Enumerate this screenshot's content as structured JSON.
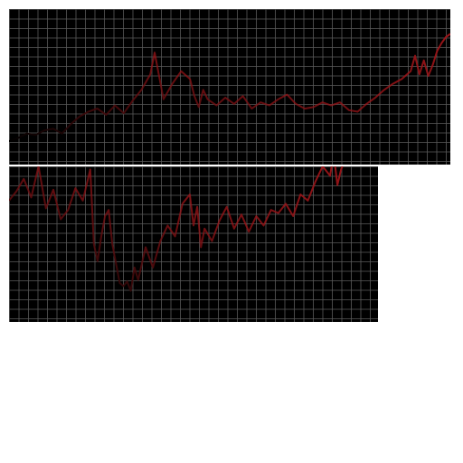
{
  "chart_data": [
    {
      "type": "line",
      "title": "",
      "xlabel": "",
      "ylabel": "",
      "grid": true,
      "background": "#000000",
      "grid_color": "#5a5a5a",
      "line_color": "#9a1418",
      "fade_to": "#000000",
      "xlim": [
        0,
        100
      ],
      "ylim": [
        0,
        100
      ],
      "series": [
        {
          "x": [
            0,
            2,
            4,
            6,
            8,
            10,
            12,
            14,
            16,
            18,
            20,
            22,
            24,
            26,
            28,
            30,
            32,
            33,
            35,
            37,
            39,
            41,
            42,
            43,
            44,
            45,
            47,
            49,
            51,
            53,
            55,
            57,
            59,
            61,
            63,
            65,
            67,
            69,
            71,
            73,
            75,
            77,
            79,
            81,
            83,
            85,
            87,
            89,
            91,
            92,
            93,
            94,
            95,
            96,
            97,
            98,
            99,
            100
          ],
          "y": [
            15,
            17,
            20,
            19,
            22,
            23,
            20,
            26,
            31,
            34,
            36,
            32,
            38,
            33,
            41,
            48,
            58,
            72,
            42,
            52,
            60,
            55,
            44,
            37,
            48,
            42,
            38,
            43,
            39,
            44,
            36,
            40,
            38,
            42,
            45,
            39,
            36,
            37,
            40,
            38,
            40,
            35,
            34,
            39,
            43,
            48,
            52,
            55,
            60,
            70,
            58,
            67,
            57,
            64,
            73,
            78,
            82,
            84
          ]
        }
      ]
    },
    {
      "type": "line",
      "title": "",
      "xlabel": "",
      "ylabel": "",
      "grid": true,
      "background": "#000000",
      "grid_color": "#5a5a5a",
      "line_color": "#9a1418",
      "fade_to": "#000000",
      "xlim": [
        0,
        100
      ],
      "ylim": [
        0,
        100
      ],
      "series": [
        {
          "x": [
            0,
            2,
            4,
            6,
            8,
            10,
            12,
            14,
            16,
            18,
            20,
            22,
            23,
            24,
            25,
            26,
            27,
            28,
            30,
            31,
            32,
            33,
            34,
            35,
            37,
            39,
            41,
            43,
            45,
            47,
            49,
            50,
            51,
            52,
            53,
            55,
            57,
            59,
            61,
            63,
            65,
            67,
            69,
            71,
            73,
            75,
            77,
            79,
            81,
            83,
            85,
            87,
            88,
            89,
            90,
            91
          ],
          "y": [
            78,
            84,
            92,
            80,
            100,
            73,
            85,
            66,
            72,
            86,
            78,
            98,
            50,
            39,
            55,
            68,
            72,
            50,
            25,
            23,
            26,
            20,
            35,
            27,
            48,
            35,
            52,
            62,
            55,
            76,
            82,
            62,
            74,
            48,
            60,
            52,
            65,
            74,
            60,
            69,
            58,
            68,
            62,
            72,
            70,
            76,
            68,
            82,
            78,
            90,
            100,
            94,
            108,
            88,
            98,
            104
          ]
        }
      ]
    }
  ]
}
